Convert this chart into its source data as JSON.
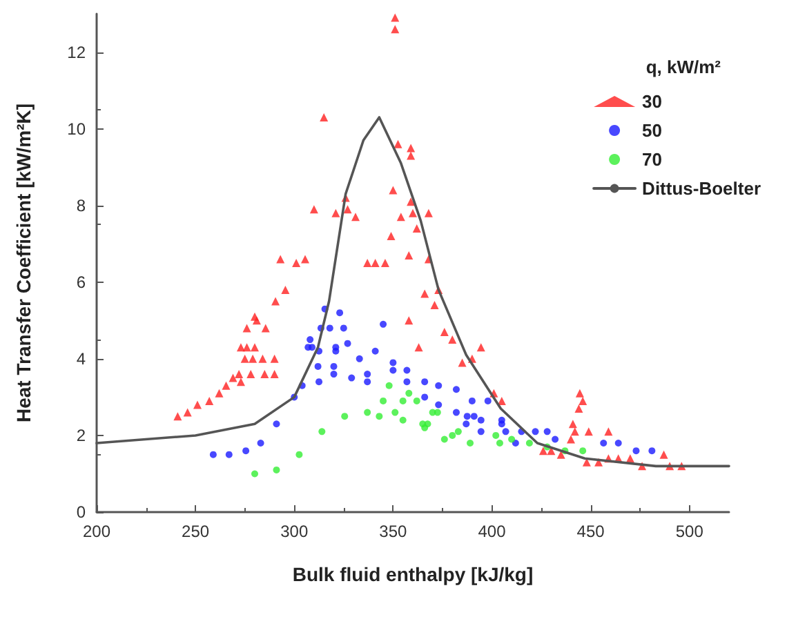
{
  "chart_data": {
    "type": "scatter",
    "xlabel": "Bulk fluid enthalpy [kJ/kg]",
    "ylabel": "Heat Transfer Coefficient [kW/m²K]",
    "legend_title": "q, kW/m²",
    "legend": "top right",
    "grid": false,
    "xlim": [
      200,
      520
    ],
    "xticks": [
      200,
      250,
      300,
      350,
      400,
      450,
      500
    ],
    "ylim": [
      0,
      13
    ],
    "yticks": [
      0,
      2,
      4,
      6,
      8,
      10,
      12
    ],
    "series": [
      {
        "name": "30",
        "color": "#ff2020",
        "marker": "triangle",
        "x": [
          351,
          351,
          315,
          352.5,
          359,
          359,
          350,
          310,
          321,
          327,
          326,
          331,
          359,
          360,
          354,
          368,
          362,
          349,
          358,
          368,
          293,
          301,
          305.5,
          337,
          341,
          346,
          295.5,
          290.5,
          366,
          373,
          371,
          281,
          280,
          276,
          285.5,
          273,
          276,
          280,
          275,
          279,
          284,
          290,
          272,
          278,
          285,
          290,
          269,
          273,
          265.5,
          262,
          257,
          251,
          246,
          241,
          358,
          363,
          376,
          380,
          394.5,
          390,
          385,
          401,
          405,
          444.5,
          446,
          444,
          441,
          442,
          440,
          426,
          430,
          435,
          449,
          459,
          448,
          454,
          459,
          464,
          470,
          476,
          487,
          490,
          496
        ],
        "values": [
          12.9,
          12.6,
          10.3,
          9.6,
          9.5,
          9.3,
          8.4,
          7.9,
          7.8,
          7.9,
          8.2,
          7.7,
          8.1,
          7.8,
          7.7,
          7.8,
          7.4,
          7.2,
          6.7,
          6.6,
          6.6,
          6.5,
          6.6,
          6.5,
          6.5,
          6.5,
          5.8,
          5.5,
          5.7,
          5.8,
          5.4,
          5.0,
          5.1,
          4.8,
          4.8,
          4.3,
          4.3,
          4.3,
          4.0,
          4.0,
          4.0,
          4.0,
          3.6,
          3.6,
          3.6,
          3.6,
          3.5,
          3.4,
          3.3,
          3.1,
          2.9,
          2.8,
          2.6,
          2.5,
          5.0,
          4.3,
          4.7,
          4.5,
          4.3,
          4.0,
          3.9,
          3.1,
          2.9,
          3.1,
          2.9,
          2.7,
          2.3,
          2.1,
          1.9,
          1.6,
          1.6,
          1.5,
          2.1,
          2.1,
          1.3,
          1.3,
          1.4,
          1.4,
          1.4,
          1.2,
          1.5,
          1.2,
          1.2
        ]
      },
      {
        "name": "50",
        "color": "#1a1aff",
        "marker": "circle",
        "x": [
          315.5,
          323,
          313.5,
          318,
          325,
          345,
          308,
          307,
          309,
          327,
          312.5,
          321,
          321,
          341,
          333,
          350,
          350,
          312,
          320,
          320,
          329,
          337,
          337,
          357,
          357,
          312.5,
          304,
          300,
          366,
          373,
          366,
          373,
          291,
          283,
          275.5,
          267,
          259,
          382,
          382,
          390,
          387.5,
          391,
          394.5,
          398,
          387,
          394.5,
          405,
          405,
          407,
          412,
          415,
          422,
          428,
          432,
          456.5,
          464,
          473,
          481
        ],
        "values": [
          5.3,
          5.2,
          4.8,
          4.8,
          4.8,
          4.9,
          4.5,
          4.3,
          4.3,
          4.4,
          4.2,
          4.2,
          4.3,
          4.2,
          4.0,
          3.9,
          3.7,
          3.8,
          3.8,
          3.6,
          3.5,
          3.6,
          3.4,
          3.7,
          3.4,
          3.4,
          3.3,
          3.0,
          3.4,
          3.3,
          3.0,
          2.8,
          2.3,
          1.8,
          1.6,
          1.5,
          1.5,
          3.2,
          2.6,
          2.9,
          2.5,
          2.5,
          2.4,
          2.9,
          2.3,
          2.1,
          2.4,
          2.3,
          2.1,
          1.8,
          2.1,
          2.1,
          2.1,
          1.9,
          1.8,
          1.8,
          1.6,
          1.6
        ]
      },
      {
        "name": "70",
        "color": "#33ee33",
        "marker": "circle",
        "x": [
          280,
          291,
          302.5,
          314,
          325.5,
          337,
          343,
          345,
          348,
          351,
          355,
          358,
          355,
          362,
          365,
          370,
          367.5,
          376,
          366,
          372.5,
          380,
          383,
          389,
          402,
          404,
          410,
          419,
          428,
          437,
          446
        ],
        "values": [
          1.0,
          1.1,
          1.5,
          2.1,
          2.5,
          2.6,
          2.5,
          2.9,
          3.3,
          2.6,
          2.9,
          3.1,
          2.4,
          2.9,
          2.3,
          2.6,
          2.3,
          1.9,
          2.2,
          2.6,
          2.0,
          2.1,
          1.8,
          2.0,
          1.8,
          1.9,
          1.8,
          1.7,
          1.6,
          1.6
        ]
      },
      {
        "name": "Dittus-Boelter",
        "type": "line",
        "color": "#555555",
        "marker": "none",
        "line_style": "solid",
        "x": [
          200,
          250,
          280,
          300,
          312,
          317.6,
          326,
          335,
          343,
          354,
          364,
          373,
          387,
          404.5,
          423,
          447,
          483,
          520
        ],
        "values": [
          1.8,
          2.0,
          2.3,
          3.0,
          4.3,
          5.5,
          8.3,
          9.7,
          10.3,
          9.1,
          7.6,
          5.8,
          4.1,
          2.7,
          1.8,
          1.4,
          1.2,
          1.2
        ]
      }
    ]
  }
}
